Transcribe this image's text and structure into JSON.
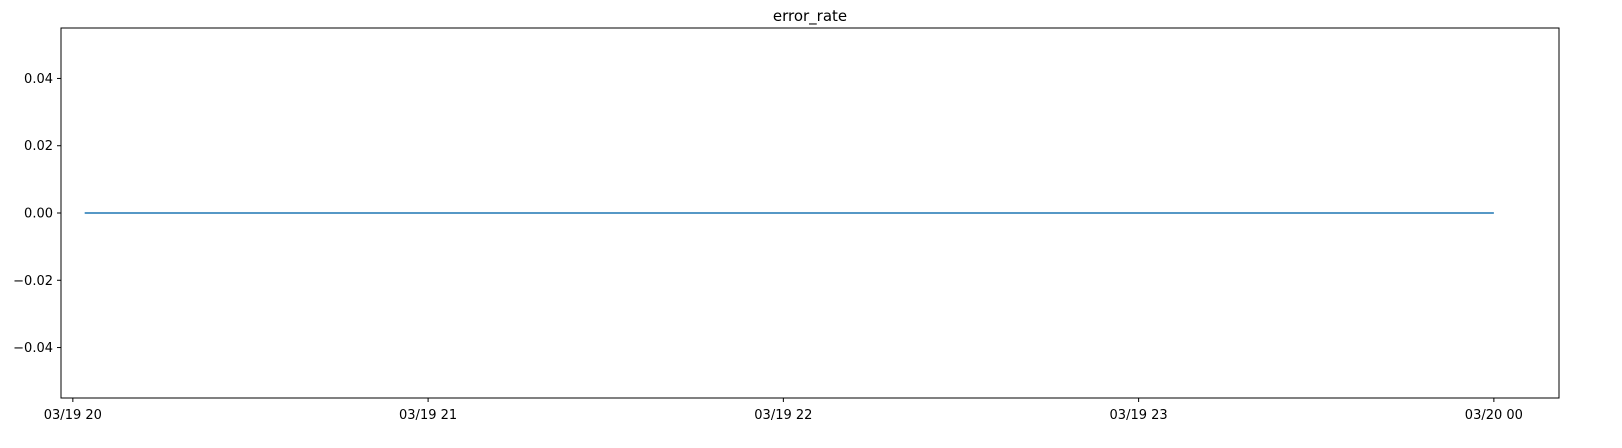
{
  "chart_data": {
    "type": "line",
    "title": "error_rate",
    "xlabel": "",
    "ylabel": "",
    "x_ticks": [
      "03/19 20",
      "03/19 21",
      "03/19 22",
      "03/19 23",
      "03/20 00"
    ],
    "y_ticks": [
      "−0.04",
      "−0.02",
      "0.00",
      "0.02",
      "0.04"
    ],
    "y_tick_values": [
      -0.04,
      -0.02,
      0.0,
      0.02,
      0.04
    ],
    "ylim": [
      -0.055,
      0.055
    ],
    "xlim": [
      "03/19 19:58",
      "03/20 00:11"
    ],
    "grid": false,
    "series": [
      {
        "color": "#1f77b4",
        "x": [
          "03/19 20:02",
          "03/20 00:00"
        ],
        "y": [
          0.0,
          0.0
        ]
      }
    ]
  }
}
